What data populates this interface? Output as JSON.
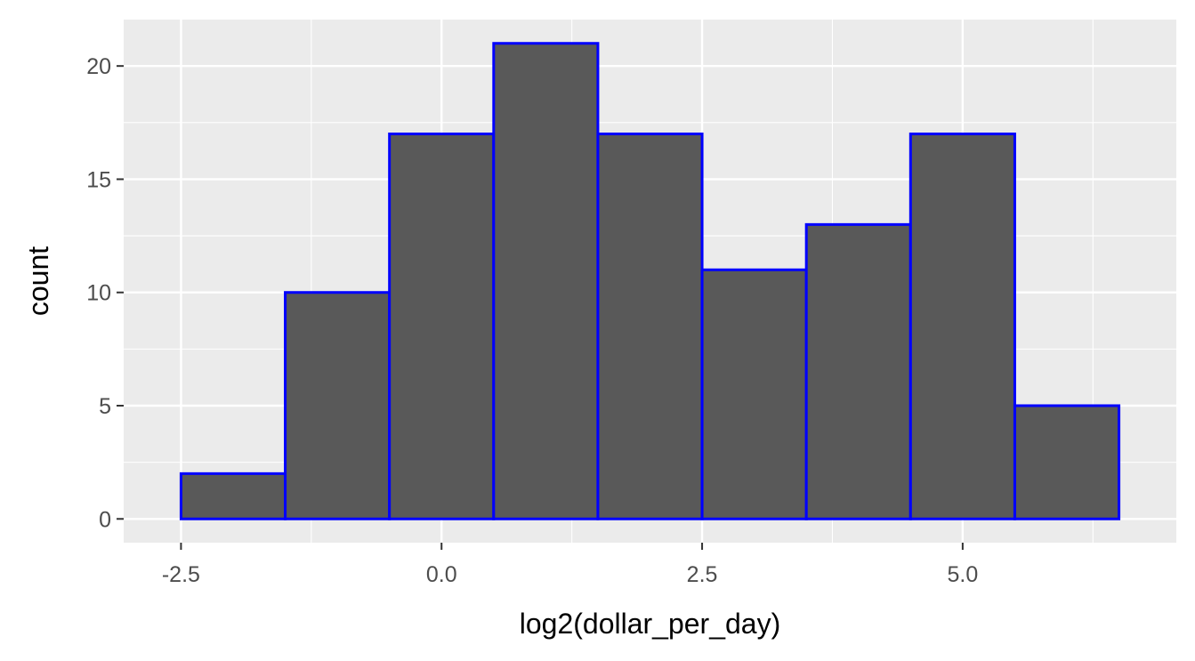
{
  "chart_data": {
    "type": "bar",
    "xlabel": "log2(dollar_per_day)",
    "ylabel": "count",
    "bins": [
      {
        "x0": -2.5,
        "x1": -1.5,
        "count": 2
      },
      {
        "x0": -1.5,
        "x1": -0.5,
        "count": 10
      },
      {
        "x0": -0.5,
        "x1": 0.5,
        "count": 17
      },
      {
        "x0": 0.5,
        "x1": 1.5,
        "count": 21
      },
      {
        "x0": 1.5,
        "x1": 2.5,
        "count": 17
      },
      {
        "x0": 2.5,
        "x1": 3.5,
        "count": 11
      },
      {
        "x0": 3.5,
        "x1": 4.5,
        "count": 13
      },
      {
        "x0": 4.5,
        "x1": 5.5,
        "count": 17
      },
      {
        "x0": 5.5,
        "x1": 6.5,
        "count": 5
      }
    ],
    "xlim": [
      -3.05,
      7.05
    ],
    "ylim": [
      -1.05,
      22.05
    ],
    "x_ticks": [
      -2.5,
      0.0,
      2.5,
      5.0
    ],
    "x_tick_labels": [
      "-2.5",
      "0.0",
      "2.5",
      "5.0"
    ],
    "y_ticks": [
      0,
      5,
      10,
      15,
      20
    ],
    "y_tick_labels": [
      "0",
      "5",
      "10",
      "15",
      "20"
    ],
    "grid": true,
    "colors": {
      "panel_background": "#ebebeb",
      "grid_line": "#ffffff",
      "bar_fill": "#595959",
      "bar_outline": "#0000ff",
      "tick_text": "#4d4d4d",
      "axis_title": "#000000"
    }
  }
}
